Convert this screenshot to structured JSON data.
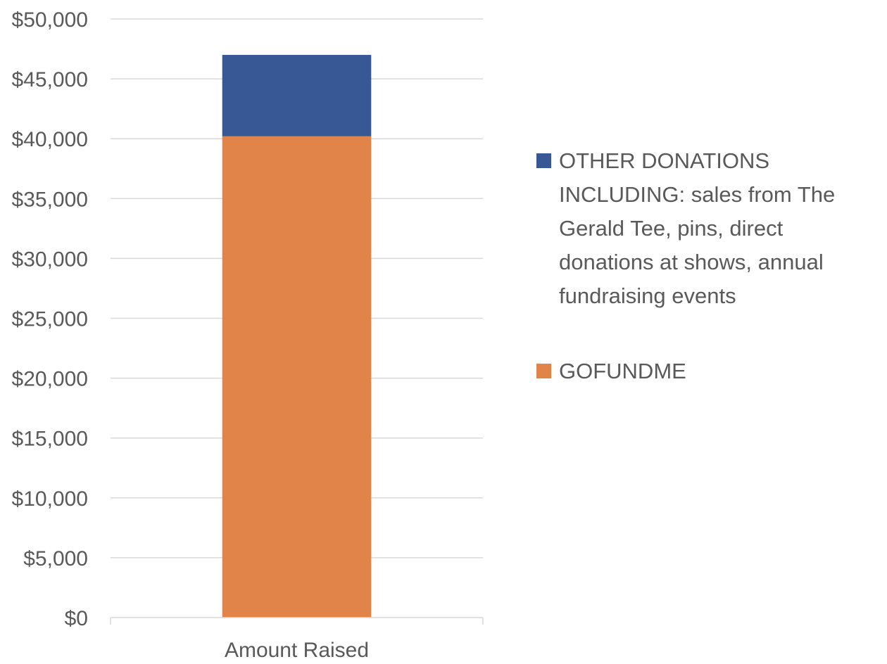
{
  "chart_data": {
    "type": "bar",
    "stacked": true,
    "categories": [
      "Amount Raised"
    ],
    "series": [
      {
        "name": "GOFUNDME",
        "values": [
          40200
        ],
        "color": "#e0844a"
      },
      {
        "name": "OTHER DONATIONS INCLUDING: sales from The Gerald Tee, pins, direct donations at shows, annual fundraising events",
        "values": [
          6800
        ],
        "color": "#375795"
      }
    ],
    "title": "",
    "xlabel": "",
    "ylabel": "",
    "ylim": [
      0,
      50000
    ],
    "yticks": [
      "$0",
      "$5,000",
      "$10,000",
      "$15,000",
      "$20,000",
      "$25,000",
      "$30,000",
      "$35,000",
      "$40,000",
      "$45,000",
      "$50,000"
    ],
    "grid": true,
    "legend_position": "right"
  },
  "legend": {
    "items": [
      {
        "label": "OTHER DONATIONS INCLUDING: sales from The Gerald Tee, pins, direct donations at shows, annual fundraising events",
        "color": "#375795"
      },
      {
        "label": "GOFUNDME",
        "color": "#e0844a"
      }
    ]
  }
}
